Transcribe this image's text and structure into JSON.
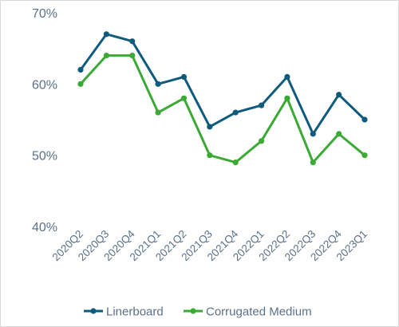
{
  "chart_data": {
    "type": "line",
    "title": "",
    "xlabel": "",
    "ylabel": "",
    "categories": [
      "2020Q2",
      "2020Q3",
      "2020Q4",
      "2021Q1",
      "2021Q2",
      "2021Q3",
      "2021Q4",
      "2022Q1",
      "2022Q2",
      "2022Q3",
      "2022Q4",
      "2023Q1"
    ],
    "ylim": [
      0.4,
      0.7
    ],
    "yticks": [
      0.4,
      0.5,
      0.6,
      0.7
    ],
    "ytick_labels": [
      "40%",
      "50%",
      "60%",
      "70%"
    ],
    "grid": false,
    "legend_position": "bottom",
    "series": [
      {
        "name": "Linerboard",
        "color": "#0e5b7d",
        "values": [
          0.62,
          0.67,
          0.66,
          0.6,
          0.61,
          0.54,
          0.56,
          0.57,
          0.61,
          0.53,
          0.585,
          0.55
        ]
      },
      {
        "name": "Corrugated Medium",
        "color": "#3aaa35",
        "values": [
          0.6,
          0.64,
          0.64,
          0.56,
          0.58,
          0.5,
          0.49,
          0.52,
          0.58,
          0.49,
          0.53,
          0.5
        ]
      }
    ]
  }
}
